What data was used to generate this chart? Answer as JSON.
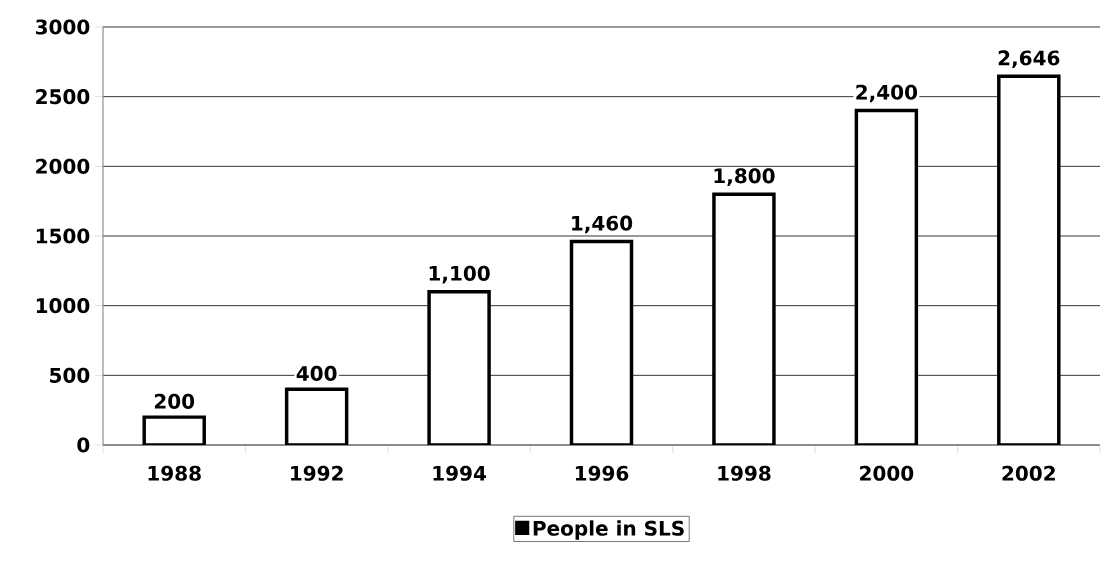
{
  "chart_data": {
    "type": "bar",
    "categories": [
      "1988",
      "1992",
      "1994",
      "1996",
      "1998",
      "2000",
      "2002"
    ],
    "series": [
      {
        "name": "People in SLS",
        "color": "#ffffff",
        "values": [
          200,
          400,
          1100,
          1460,
          1800,
          2400,
          2646
        ],
        "value_labels": [
          "200",
          "400",
          "1,100",
          "1,460",
          "1,800",
          "2,400",
          "2,646"
        ]
      }
    ],
    "ylim": [
      0,
      3000
    ],
    "yticks": [
      0,
      500,
      1000,
      1500,
      2000,
      2500,
      3000
    ],
    "grid": "y",
    "legend": "bottom"
  }
}
